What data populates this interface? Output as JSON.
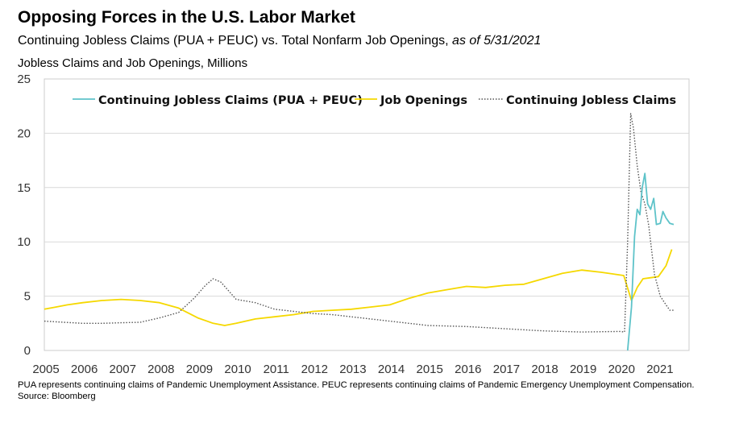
{
  "header": {
    "title": "Opposing Forces in the U.S. Labor Market",
    "subtitle_main": "Continuing Jobless Claims (PUA + PEUC) vs. Total Nonfarm Job Openings, ",
    "subtitle_date": "as of 5/31/2021",
    "axis_caption": "Jobless Claims and Job Openings, Millions"
  },
  "footer": {
    "note": "PUA represents continuing claims of Pandemic Unemployment Assistance. PEUC represents continuing claims of Pandemic Emergency Unemployment Compensation.",
    "source": "Source: Bloomberg"
  },
  "colors": {
    "pua_peuc": "#5ec3c9",
    "job_openings": "#f5d800",
    "continuing_claims": "#555555",
    "grid": "#d9d9d9",
    "frame": "#cccccc"
  },
  "chart_data": {
    "type": "line",
    "ylim": [
      0,
      25
    ],
    "xlim": [
      2005,
      2021.8
    ],
    "y_ticks": [
      0,
      5,
      10,
      15,
      20,
      25
    ],
    "x_ticks": [
      2005,
      2006,
      2007,
      2008,
      2009,
      2010,
      2011,
      2012,
      2013,
      2014,
      2015,
      2016,
      2017,
      2018,
      2019,
      2020,
      2021
    ],
    "grid": "horizontal",
    "legend_position": "top",
    "series": [
      {
        "name": "Continuing Jobless Claims (PUA + PEUC)",
        "style": "solid",
        "color": "#5ec3c9",
        "x": [
          2020.2,
          2020.3,
          2020.38,
          2020.45,
          2020.52,
          2020.58,
          2020.65,
          2020.72,
          2020.8,
          2020.88,
          2020.95,
          2021.05,
          2021.12,
          2021.2,
          2021.3,
          2021.4
        ],
        "y": [
          0,
          4,
          10.5,
          13,
          12.5,
          15,
          16.3,
          13.5,
          13,
          14,
          11.6,
          11.7,
          12.8,
          12.2,
          11.7,
          11.6
        ]
      },
      {
        "name": "Job Openings",
        "style": "solid",
        "color": "#f5d800",
        "x": [
          2005,
          2005.3,
          2005.6,
          2006,
          2006.5,
          2007,
          2007.5,
          2008,
          2008.5,
          2009,
          2009.4,
          2009.7,
          2010,
          2010.5,
          2011,
          2011.5,
          2012,
          2012.5,
          2013,
          2013.5,
          2014,
          2014.5,
          2015,
          2015.5,
          2016,
          2016.5,
          2017,
          2017.5,
          2018,
          2018.5,
          2019,
          2019.5,
          2019.9,
          2020.1,
          2020.3,
          2020.45,
          2020.6,
          2020.8,
          2021,
          2021.2,
          2021.35
        ],
        "y": [
          3.8,
          4.0,
          4.2,
          4.4,
          4.6,
          4.7,
          4.6,
          4.4,
          3.9,
          3.0,
          2.5,
          2.3,
          2.5,
          2.9,
          3.1,
          3.3,
          3.6,
          3.7,
          3.8,
          4.0,
          4.2,
          4.8,
          5.3,
          5.6,
          5.9,
          5.8,
          6.0,
          6.1,
          6.6,
          7.1,
          7.4,
          7.2,
          7.0,
          6.9,
          4.6,
          5.8,
          6.6,
          6.7,
          6.8,
          7.8,
          9.3
        ]
      },
      {
        "name": "Continuing Jobless Claims",
        "style": "dotted",
        "color": "#555555",
        "x": [
          2005,
          2005.5,
          2006,
          2006.5,
          2007,
          2007.5,
          2008,
          2008.5,
          2008.9,
          2009.2,
          2009.4,
          2009.6,
          2009.8,
          2010,
          2010.5,
          2011,
          2011.5,
          2012,
          2012.5,
          2013,
          2013.5,
          2014,
          2014.5,
          2015,
          2016,
          2017,
          2018,
          2019,
          2020,
          2020.12,
          2020.2,
          2020.28,
          2020.35,
          2020.45,
          2020.55,
          2020.65,
          2020.75,
          2020.9,
          2021.05,
          2021.2,
          2021.3,
          2021.4
        ],
        "y": [
          2.7,
          2.6,
          2.5,
          2.5,
          2.55,
          2.6,
          3.0,
          3.5,
          4.8,
          6.0,
          6.6,
          6.3,
          5.5,
          4.7,
          4.4,
          3.8,
          3.6,
          3.4,
          3.3,
          3.1,
          2.9,
          2.7,
          2.5,
          2.3,
          2.2,
          2.0,
          1.8,
          1.7,
          1.75,
          1.7,
          10,
          21.8,
          20.5,
          17,
          14.5,
          13.5,
          11.5,
          7,
          5,
          4.2,
          3.7,
          3.7
        ]
      }
    ]
  }
}
